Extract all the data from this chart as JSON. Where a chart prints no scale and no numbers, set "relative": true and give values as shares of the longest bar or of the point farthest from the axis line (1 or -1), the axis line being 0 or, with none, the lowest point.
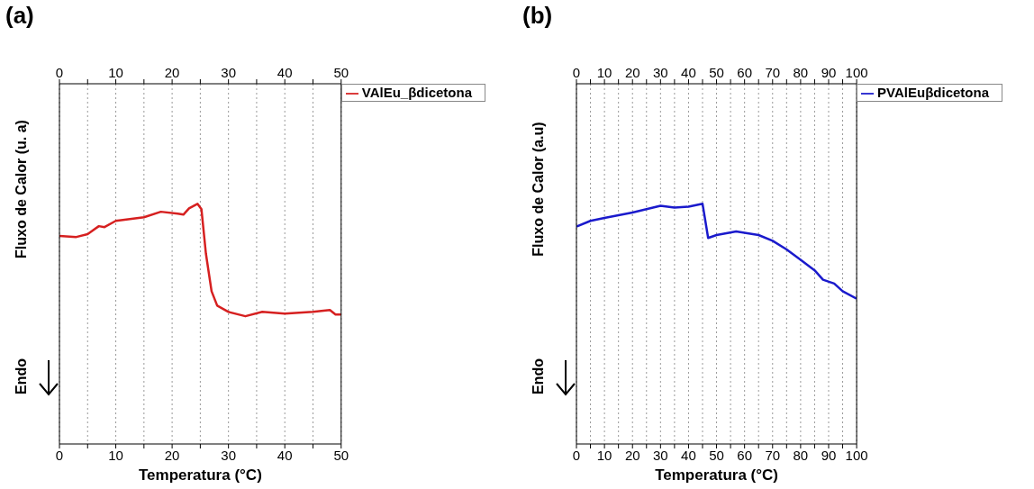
{
  "chart_data": [
    {
      "type": "line",
      "title": "(a)",
      "xlabel": "Temperatura (°C)",
      "ylabel": "Fluxo de Calor (u. a)",
      "annotations": [
        "Endo"
      ],
      "relative": true,
      "xlim": [
        0,
        50
      ],
      "xticks": [
        0,
        {
          "value": 5,
          "label": null
        },
        10,
        {
          "value": 15,
          "label": null
        },
        20,
        {
          "value": 25,
          "label": null
        },
        30,
        {
          "value": 35,
          "label": null
        },
        40,
        {
          "value": 45,
          "label": null
        },
        50
      ],
      "x2lim": [
        0,
        50
      ],
      "x2ticks": [
        0,
        {
          "value": 5,
          "label": null
        },
        10,
        {
          "value": 15,
          "label": null
        },
        20,
        {
          "value": 25,
          "label": null
        },
        30,
        {
          "value": 35,
          "label": null
        },
        40,
        {
          "value": 45,
          "label": null
        },
        50
      ],
      "grid": "x",
      "legend": "top right",
      "marker": "none",
      "line_style": "solid",
      "x": [
        0,
        3,
        5,
        7,
        8,
        10,
        15,
        18,
        21,
        22,
        23,
        24.5,
        25.2,
        26,
        27,
        28,
        30,
        33,
        36,
        40,
        45,
        48,
        49,
        50
      ],
      "series": [
        {
          "name": "VAlEu_βdicetona",
          "color": "#d62020",
          "values": [
            0.866,
            0.862,
            0.874,
            0.907,
            0.903,
            0.929,
            0.944,
            0.967,
            0.959,
            0.955,
            0.981,
            1,
            0.978,
            0.792,
            0.636,
            0.576,
            0.55,
            0.532,
            0.55,
            0.543,
            0.55,
            0.558,
            0.539,
            0.539
          ]
        }
      ]
    },
    {
      "type": "line",
      "title": "(b)",
      "xlabel": "Temperatura (°C)",
      "ylabel": "Fluxo de Calor (a.u)",
      "annotations": [
        "Endo"
      ],
      "relative": true,
      "xlim": [
        0,
        100
      ],
      "xticks": [
        0,
        {
          "value": 5,
          "label": null
        },
        10,
        {
          "value": 15,
          "label": null
        },
        20,
        {
          "value": 25,
          "label": null
        },
        30,
        {
          "value": 35,
          "label": null
        },
        40,
        {
          "value": 45,
          "label": null
        },
        50,
        {
          "value": 55,
          "label": null
        },
        60,
        {
          "value": 65,
          "label": null
        },
        70,
        {
          "value": 75,
          "label": null
        },
        80,
        {
          "value": 85,
          "label": null
        },
        90,
        {
          "value": 95,
          "label": null
        },
        100
      ],
      "x2lim": [
        0,
        100
      ],
      "x2ticks": [
        0,
        {
          "value": 5,
          "label": null
        },
        10,
        {
          "value": 15,
          "label": null
        },
        20,
        {
          "value": 25,
          "label": null
        },
        30,
        {
          "value": 35,
          "label": null
        },
        40,
        {
          "value": 45,
          "label": null
        },
        50,
        {
          "value": 55,
          "label": null
        },
        60,
        {
          "value": 65,
          "label": null
        },
        70,
        {
          "value": 75,
          "label": null
        },
        80,
        {
          "value": 85,
          "label": null
        },
        90,
        {
          "value": 95,
          "label": null
        },
        100
      ],
      "grid": "x",
      "legend": "top right",
      "marker": "none",
      "line_style": "solid",
      "x": [
        0,
        5,
        10,
        20,
        30,
        35,
        40,
        45,
        46,
        47,
        50,
        57,
        65,
        70,
        75,
        80,
        85,
        88,
        92,
        95,
        100
      ],
      "series": [
        {
          "name": "PVAlEuβdicetona",
          "color": "#1a1acc",
          "values": [
            0.905,
            0.929,
            0.941,
            0.964,
            0.992,
            0.984,
            0.988,
            1,
            0.929,
            0.858,
            0.87,
            0.885,
            0.87,
            0.846,
            0.81,
            0.767,
            0.723,
            0.684,
            0.668,
            0.636,
            0.605
          ]
        }
      ]
    }
  ]
}
